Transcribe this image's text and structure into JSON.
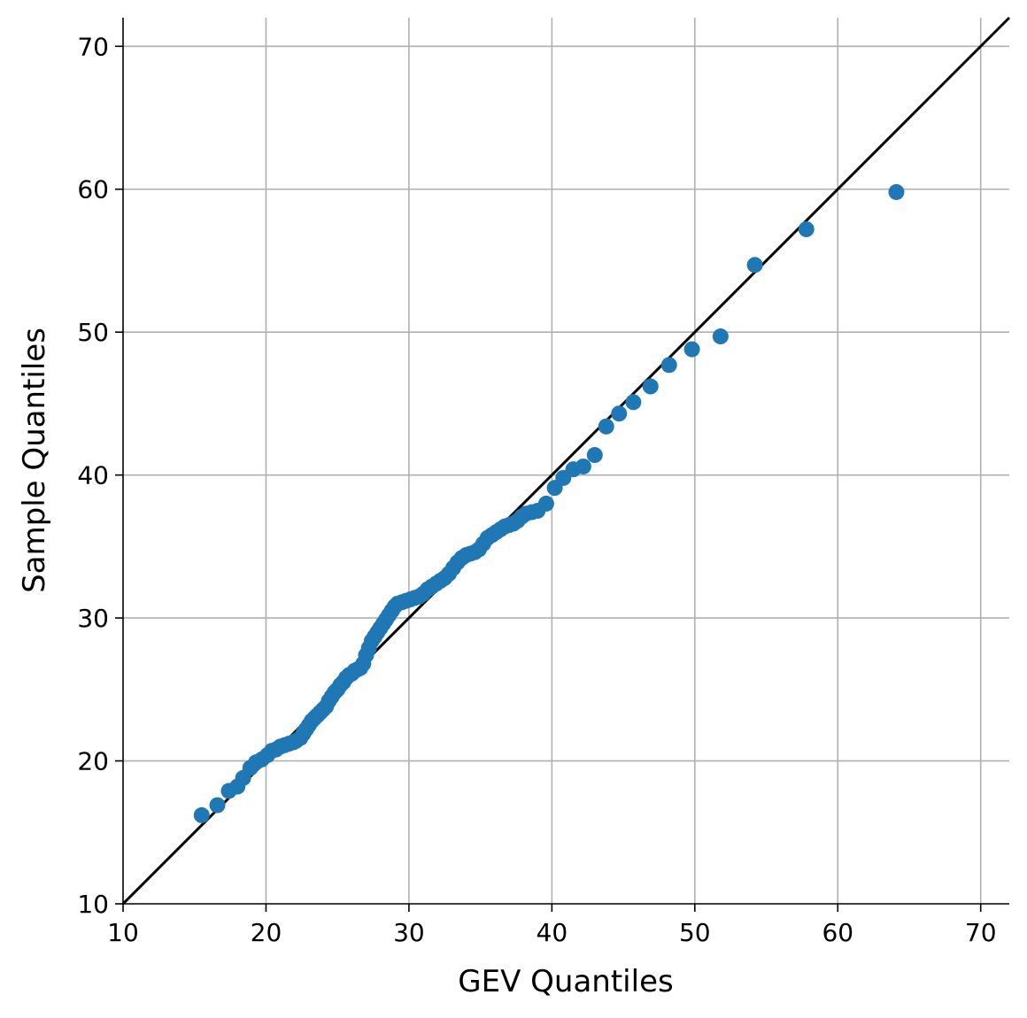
{
  "chart_data": {
    "type": "scatter",
    "title": "",
    "xlabel": "GEV Quantiles",
    "ylabel": "Sample Quantiles",
    "xlim": [
      10,
      72
    ],
    "ylim": [
      10,
      72
    ],
    "xticks": [
      10,
      20,
      30,
      40,
      50,
      60,
      70
    ],
    "yticks": [
      10,
      20,
      30,
      40,
      50,
      60,
      70
    ],
    "grid": true,
    "legend": "none",
    "point_color": "#1f77b4",
    "reference_line": {
      "from": [
        10,
        10
      ],
      "to": [
        72,
        72
      ],
      "color": "#000000"
    },
    "series": [
      {
        "x": [
          15.5,
          16.6,
          17.4,
          18.0,
          18.4,
          18.9,
          19.3,
          19.7,
          20.1,
          20.4,
          20.7,
          21.0,
          21.3,
          21.6,
          21.9,
          22.1,
          22.4,
          22.6,
          22.8,
          23.0,
          23.2,
          23.4,
          23.6,
          23.8,
          24.0,
          24.2,
          24.4,
          24.6,
          24.8,
          25.0,
          25.2,
          25.4,
          25.6,
          25.8,
          26.0,
          26.2,
          26.4,
          26.6,
          26.8,
          27.0,
          27.2,
          27.4,
          27.6,
          27.8,
          28.0,
          28.2,
          28.4,
          28.6,
          28.8,
          29.0,
          29.2,
          29.5,
          29.8,
          30.1,
          30.4,
          30.7,
          31.0,
          31.3,
          31.6,
          31.9,
          32.2,
          32.5,
          32.8,
          33.1,
          33.4,
          33.7,
          34.0,
          34.3,
          34.6,
          34.9,
          35.2,
          35.5,
          35.8,
          36.1,
          36.4,
          36.7,
          37.0,
          37.3,
          37.6,
          37.9,
          38.2,
          38.6,
          39.0,
          39.6,
          40.2,
          40.8,
          41.5,
          42.2,
          43.0,
          43.8,
          44.7,
          45.7,
          46.9,
          48.2,
          49.8,
          51.8,
          54.2,
          57.8,
          64.1
        ],
        "y": [
          16.2,
          16.9,
          17.9,
          18.2,
          18.8,
          19.5,
          19.9,
          20.1,
          20.4,
          20.7,
          20.8,
          21.0,
          21.1,
          21.2,
          21.3,
          21.4,
          21.6,
          21.9,
          22.2,
          22.5,
          22.8,
          23.0,
          23.2,
          23.4,
          23.6,
          23.8,
          24.2,
          24.5,
          24.8,
          25.0,
          25.3,
          25.5,
          25.8,
          26.0,
          26.1,
          26.3,
          26.4,
          26.5,
          26.8,
          27.4,
          27.9,
          28.4,
          28.7,
          29.0,
          29.3,
          29.6,
          29.9,
          30.2,
          30.5,
          30.8,
          31.0,
          31.1,
          31.2,
          31.3,
          31.4,
          31.5,
          31.7,
          32.0,
          32.2,
          32.4,
          32.6,
          32.8,
          33.1,
          33.5,
          33.9,
          34.2,
          34.4,
          34.5,
          34.6,
          34.8,
          35.2,
          35.6,
          35.8,
          36.0,
          36.2,
          36.4,
          36.5,
          36.6,
          36.8,
          37.1,
          37.3,
          37.4,
          37.5,
          38.0,
          39.1,
          39.8,
          40.4,
          40.6,
          41.4,
          43.4,
          44.3,
          45.1,
          46.2,
          47.7,
          48.8,
          49.7,
          54.7,
          57.2,
          59.8
        ]
      }
    ]
  }
}
